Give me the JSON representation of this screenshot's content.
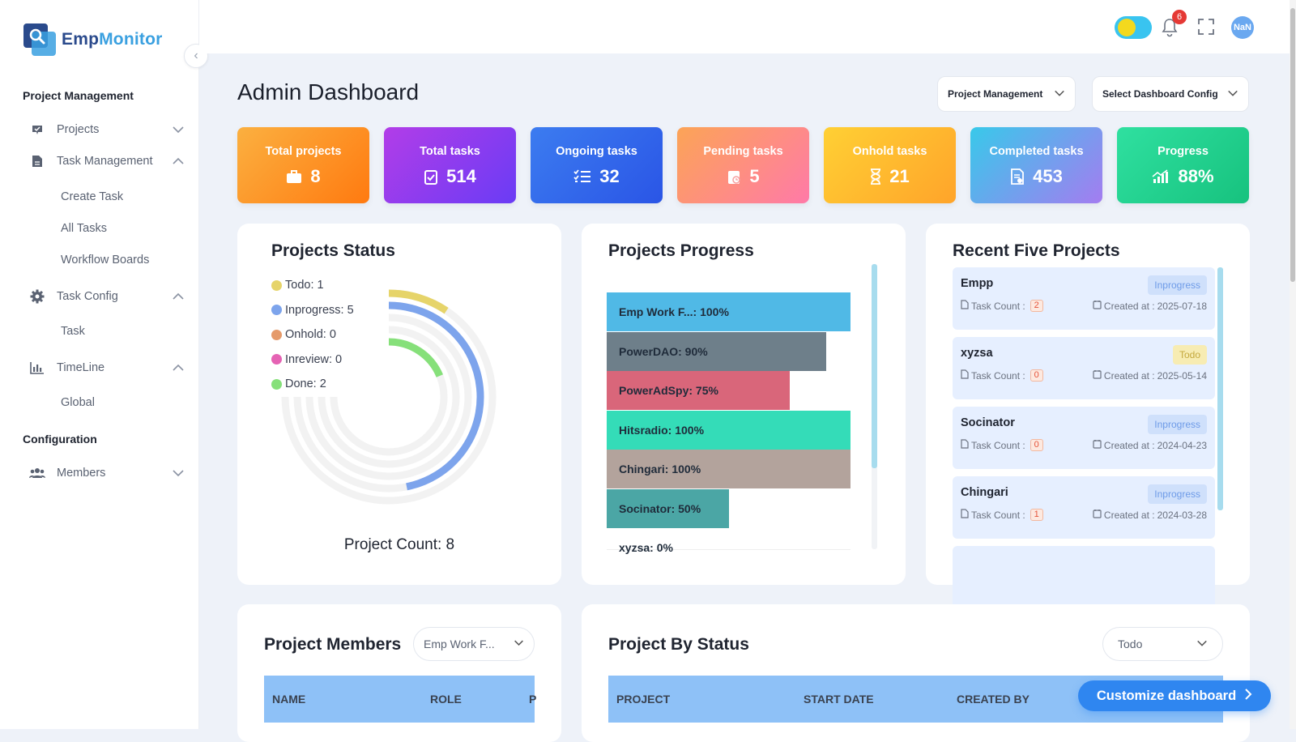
{
  "app": {
    "logo_prefix": "Emp",
    "logo_suffix": "Monitor"
  },
  "sidebar": {
    "section_project": "Project Management",
    "projects": "Projects",
    "task_management": "Task Management",
    "create_task": "Create Task",
    "all_tasks": "All Tasks",
    "workflow_boards": "Workflow Boards",
    "task_config": "Task Config",
    "task": "Task",
    "timeline": "TimeLine",
    "global": "Global",
    "section_config": "Configuration",
    "members": "Members"
  },
  "topbar": {
    "notification_count": "6",
    "avatar_text": "NaN"
  },
  "header": {
    "title": "Admin Dashboard",
    "module_select": "Project Management",
    "config_select": "Select Dashboard Config"
  },
  "stats": [
    {
      "label": "Total projects",
      "value": "8",
      "icon": "briefcase-icon",
      "color_from": "#fbb040",
      "color_to": "#ff7a10"
    },
    {
      "label": "Total tasks",
      "value": "514",
      "icon": "clipboard-check-icon",
      "color_from": "#b23de8",
      "color_to": "#6a3cf5"
    },
    {
      "label": "Ongoing tasks",
      "value": "32",
      "icon": "list-check-icon",
      "color_from": "#3c7cf0",
      "color_to": "#2a55e6"
    },
    {
      "label": "Pending tasks",
      "value": "5",
      "icon": "clipboard-clock-icon",
      "color_from": "#fca456",
      "color_to": "#ff7aa8"
    },
    {
      "label": "Onhold tasks",
      "value": "21",
      "icon": "hourglass-icon",
      "color_from": "#ffd034",
      "color_to": "#ffa42a"
    },
    {
      "label": "Completed tasks",
      "value": "453",
      "icon": "document-check-icon",
      "color_from": "#38c9ea",
      "color_to": "#a47cf0"
    },
    {
      "label": "Progress",
      "value": "88%",
      "icon": "chart-up-icon",
      "color_from": "#2fe0a0",
      "color_to": "#17c27e"
    }
  ],
  "projects_status": {
    "title": "Projects Status",
    "legend": [
      {
        "label": "Todo: 1",
        "color": "#e6d46a"
      },
      {
        "label": "Inprogress: 5",
        "color": "#7da4ec"
      },
      {
        "label": "Onhold: 0",
        "color": "#e59a6a"
      },
      {
        "label": "Inreview: 0",
        "color": "#e563b4"
      },
      {
        "label": "Done: 2",
        "color": "#86e07a"
      }
    ],
    "count_text": "Project Count: 8"
  },
  "chart_data": [
    {
      "type": "pie",
      "title": "Projects Status",
      "categories": [
        "Todo",
        "Inprogress",
        "Onhold",
        "Inreview",
        "Done"
      ],
      "values": [
        1,
        5,
        0,
        0,
        2
      ],
      "total": 8
    },
    {
      "type": "bar",
      "title": "Projects Progress",
      "orientation": "horizontal",
      "categories": [
        "Emp Work F...",
        "PowerDAO",
        "PowerAdSpy",
        "Hitsradio",
        "Chingari",
        "Socinator",
        "xyzsa"
      ],
      "values": [
        100,
        90,
        75,
        100,
        100,
        50,
        0
      ],
      "labels": [
        "Emp Work F...: 100%",
        "PowerDAO: 90%",
        "PowerAdSpy: 75%",
        "Hitsradio: 100%",
        "Chingari: 100%",
        "Socinator: 50%",
        "xyzsa: 0%"
      ],
      "colors": [
        "#50b9e6",
        "#6e7f8a",
        "#d9667a",
        "#34dcb8",
        "#b3a39c",
        "#4ba6a5",
        "#cccccc"
      ],
      "xlim": [
        0,
        100
      ]
    }
  ],
  "projects_progress": {
    "title": "Projects Progress"
  },
  "recent_projects": {
    "title": "Recent Five Projects",
    "task_count_label": "Task Count :",
    "created_label": "Created at :",
    "items": [
      {
        "name": "Empp",
        "status": "Inprogress",
        "task_count": "2",
        "created": "2025-07-18"
      },
      {
        "name": "xyzsa",
        "status": "Todo",
        "task_count": "0",
        "created": "2025-05-14"
      },
      {
        "name": "Socinator",
        "status": "Inprogress",
        "task_count": "0",
        "created": "2024-04-23"
      },
      {
        "name": "Chingari",
        "status": "Inprogress",
        "task_count": "1",
        "created": "2024-03-28"
      }
    ]
  },
  "project_members": {
    "title": "Project Members",
    "select": "Emp Work F...",
    "columns": [
      "NAME",
      "ROLE",
      "P"
    ]
  },
  "project_by_status": {
    "title": "Project By Status",
    "select": "Todo",
    "columns": [
      "PROJECT",
      "START DATE",
      "CREATED BY"
    ]
  },
  "fab": {
    "label": "Customize dashboard"
  }
}
